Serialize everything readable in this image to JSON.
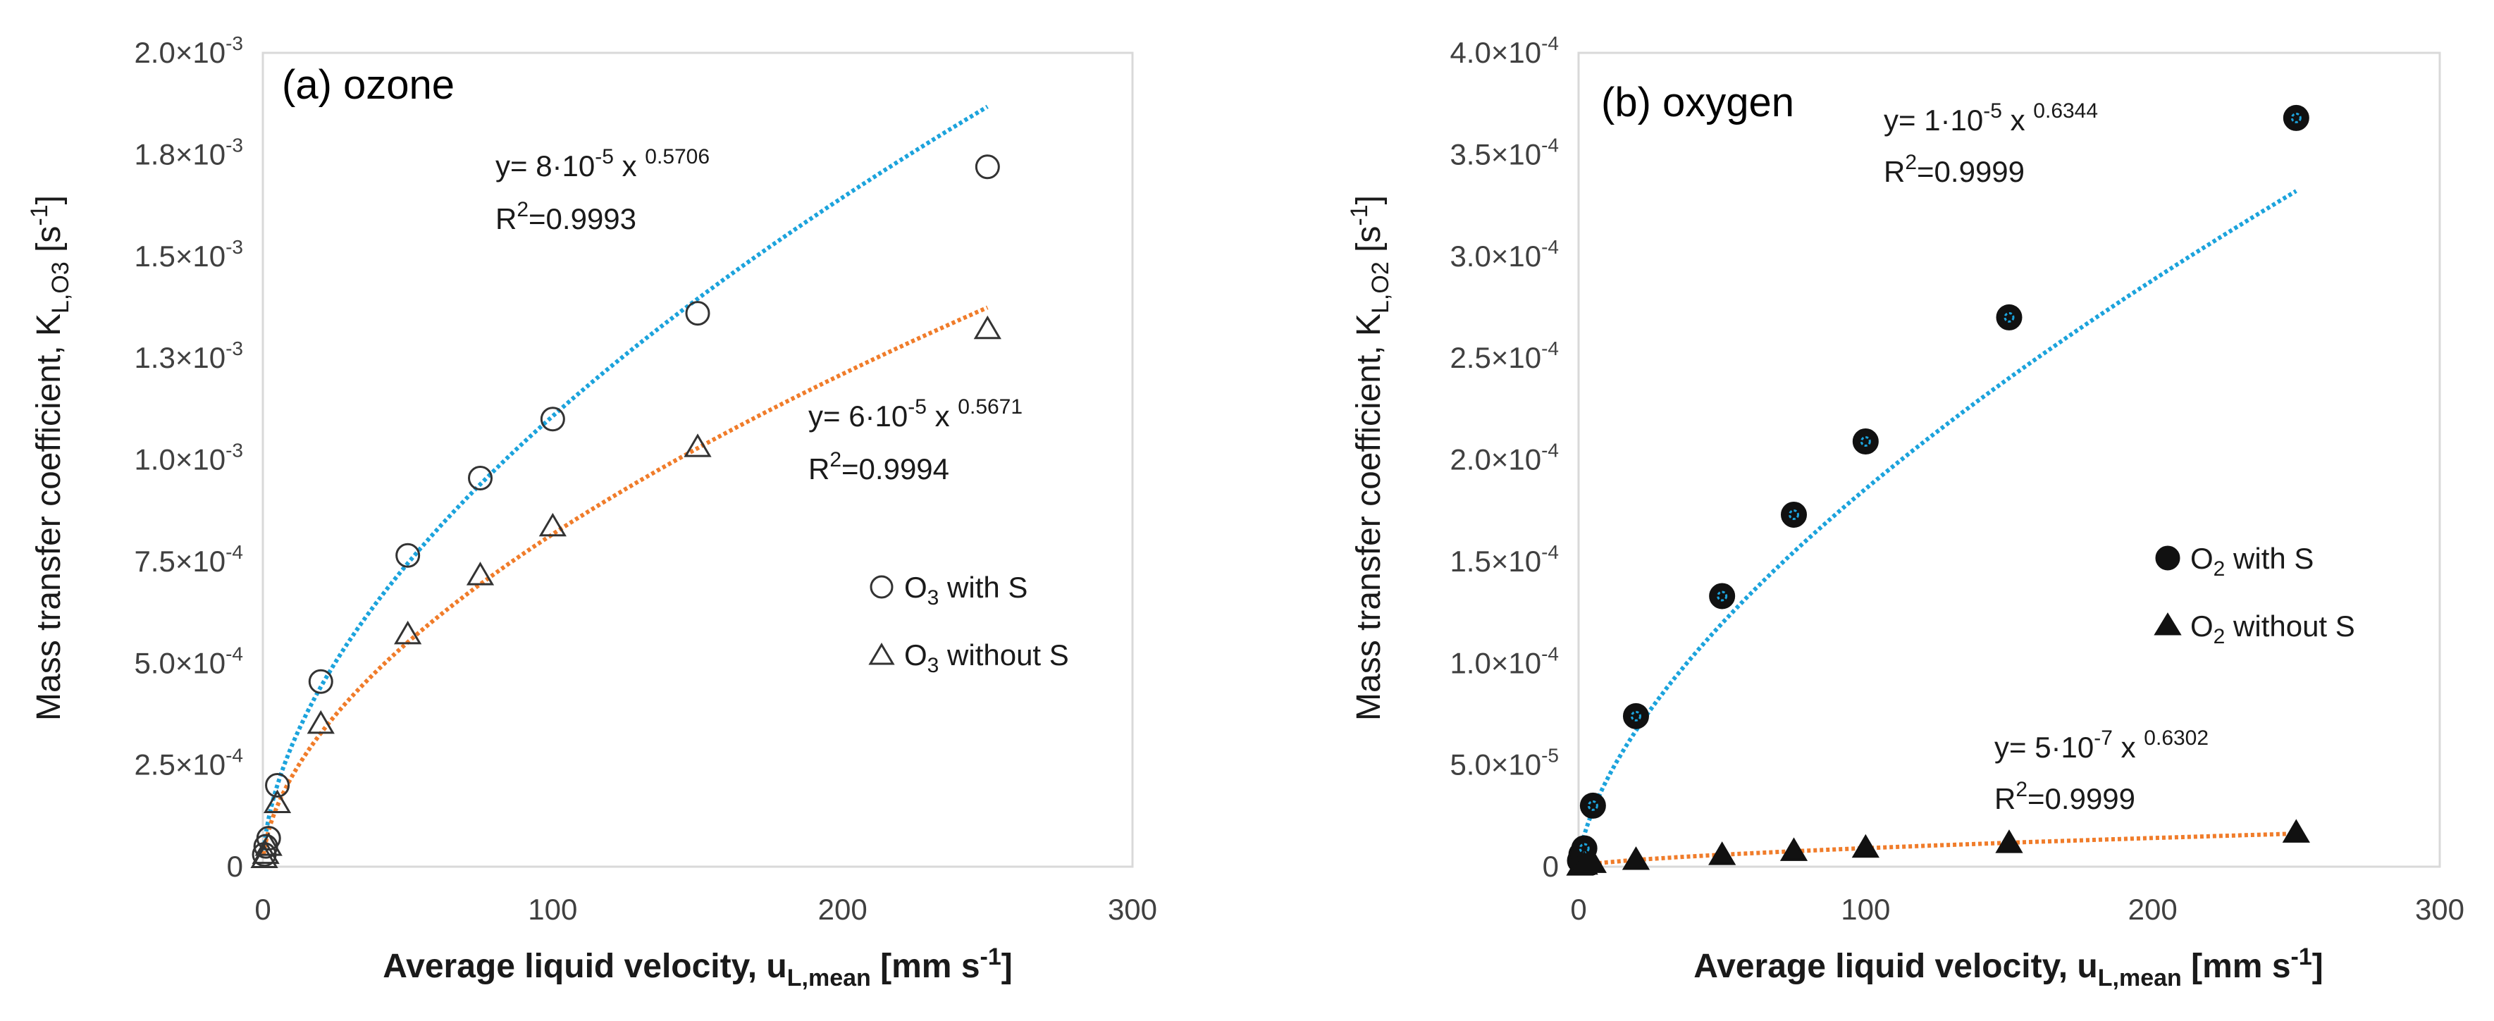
{
  "chart_data": [
    {
      "type": "scatter",
      "panel_title": "(a) ozone",
      "xlabel": "Average liquid velocity, u",
      "xlabel_sub": "L,mean",
      "xlabel_unit": " [mm s",
      "xlabel_unit_sup": "-1",
      "xlabel_close": "]",
      "ylabel": "Mass transfer coefficient, K",
      "ylabel_sub": "L,O3",
      "ylabel_unit": " [s",
      "ylabel_unit_sup": "-1",
      "ylabel_close": "]",
      "xlim": [
        0,
        300
      ],
      "ylim": [
        0,
        0.002
      ],
      "x_ticks": [
        0,
        100,
        200,
        300
      ],
      "x_tick_labels": [
        "0",
        "100",
        "200",
        "300"
      ],
      "y_ticks": [
        0,
        0.00025,
        0.0005,
        0.00075,
        0.001,
        0.00125,
        0.0015,
        0.00175,
        0.002
      ],
      "y_tick_labels": [
        {
          "m": "0",
          "e": ""
        },
        {
          "m": "2.5×10",
          "e": "-4"
        },
        {
          "m": "5.0×10",
          "e": "-4"
        },
        {
          "m": "7.5×10",
          "e": "-4"
        },
        {
          "m": "1.0×10",
          "e": "-3"
        },
        {
          "m": "1.3×10",
          "e": "-3"
        },
        {
          "m": "1.5×10",
          "e": "-3"
        },
        {
          "m": "1.8×10",
          "e": "-3"
        },
        {
          "m": "2.0×10",
          "e": "-3"
        }
      ],
      "grid": false,
      "legend_position": "right-middle",
      "series": [
        {
          "name": "O3 with S",
          "legend_main": "O",
          "legend_sub": "3",
          "legend_rest": " with S",
          "marker": "circle-open",
          "fit_color": "#1ca3dc",
          "x": [
            0.5,
            1,
            2,
            5,
            20,
            50,
            75,
            100,
            150,
            250
          ],
          "y": [
            3e-05,
            5e-05,
            7e-05,
            0.0002,
            0.000455,
            0.000765,
            0.000955,
            0.0011,
            0.00136,
            0.00172
          ],
          "fit": {
            "a": 8e-05,
            "b": 0.5706
          },
          "eq_text": "y= 8·10",
          "eq_exp": "-5",
          "eq_x": " x ",
          "eq_pow": "0.5706",
          "r2_label": "R",
          "r2_sup": "2",
          "r2_value": "=0.9993"
        },
        {
          "name": "O3 without S",
          "legend_main": "O",
          "legend_sub": "3",
          "legend_rest": " without S",
          "marker": "triangle-open",
          "fit_color": "#f07c2a",
          "x": [
            0.5,
            1,
            2,
            5,
            20,
            50,
            75,
            100,
            150,
            250
          ],
          "y": [
            2e-05,
            3e-05,
            5e-05,
            0.000155,
            0.00035,
            0.00057,
            0.000715,
            0.000835,
            0.00103,
            0.00132
          ],
          "fit": {
            "a": 6e-05,
            "b": 0.5671
          },
          "eq_text": "y= 6·10",
          "eq_exp": "-5",
          "eq_x": " x ",
          "eq_pow": "0.5671",
          "r2_label": "R",
          "r2_sup": "2",
          "r2_value": "=0.9994"
        }
      ]
    },
    {
      "type": "scatter",
      "panel_title": "(b) oxygen",
      "xlabel": "Average liquid velocity, u",
      "xlabel_sub": "L,mean",
      "xlabel_unit": " [mm s",
      "xlabel_unit_sup": "-1",
      "xlabel_close": "]",
      "ylabel": "Mass transfer coefficient, K",
      "ylabel_sub": "L,O2",
      "ylabel_unit": " [s",
      "ylabel_unit_sup": "-1",
      "ylabel_close": "]",
      "xlim": [
        0,
        300
      ],
      "ylim": [
        0,
        0.0004
      ],
      "x_ticks": [
        0,
        100,
        200,
        300
      ],
      "x_tick_labels": [
        "0",
        "100",
        "200",
        "300"
      ],
      "y_ticks": [
        0,
        5e-05,
        0.0001,
        0.00015,
        0.0002,
        0.00025,
        0.0003,
        0.00035,
        0.0004
      ],
      "y_tick_labels": [
        {
          "m": "0",
          "e": ""
        },
        {
          "m": "5.0×10",
          "e": "-5"
        },
        {
          "m": "1.0×10",
          "e": "-4"
        },
        {
          "m": "1.5×10",
          "e": "-4"
        },
        {
          "m": "2.0×10",
          "e": "-4"
        },
        {
          "m": "2.5×10",
          "e": "-4"
        },
        {
          "m": "3.0×10",
          "e": "-4"
        },
        {
          "m": "3.5×10",
          "e": "-4"
        },
        {
          "m": "4.0×10",
          "e": "-4"
        }
      ],
      "grid": false,
      "legend_position": "right-middle",
      "series": [
        {
          "name": "O2 with S",
          "legend_main": "O",
          "legend_sub": "2",
          "legend_rest": " with S",
          "marker": "circle-filled",
          "fit_color": "#1ca3dc",
          "x": [
            0.5,
            1,
            2,
            5,
            20,
            50,
            75,
            100,
            150,
            250
          ],
          "y": [
            3e-06,
            6e-06,
            9e-06,
            3e-05,
            7.4e-05,
            0.000133,
            0.000173,
            0.000209,
            0.00027,
            0.000368
          ],
          "fit": {
            "a": 1e-05,
            "b": 0.6344
          },
          "eq_text": "y= 1·10",
          "eq_exp": "-5",
          "eq_x": " x ",
          "eq_pow": "0.6344",
          "r2_label": "R",
          "r2_sup": "2",
          "r2_value": "=0.9999"
        },
        {
          "name": "O2 without S",
          "legend_main": "O",
          "legend_sub": "2",
          "legend_rest": " without S",
          "marker": "triangle-filled",
          "fit_color": "#f07c2a",
          "x": [
            0.5,
            1,
            2,
            5,
            20,
            50,
            75,
            100,
            150,
            250
          ],
          "y": [
            3e-07,
            5e-07,
            8e-07,
            1.6e-06,
            3.1e-06,
            5.5e-06,
            7.5e-06,
            9.1e-06,
            1.14e-05,
            1.65e-05
          ],
          "fit": {
            "a": 5e-07,
            "b": 0.6302
          },
          "eq_text": "y= 5·10",
          "eq_exp": "-7",
          "eq_x": " x ",
          "eq_pow": "0.6302",
          "r2_label": "R",
          "r2_sup": "2",
          "r2_value": "=0.9999"
        }
      ]
    }
  ]
}
